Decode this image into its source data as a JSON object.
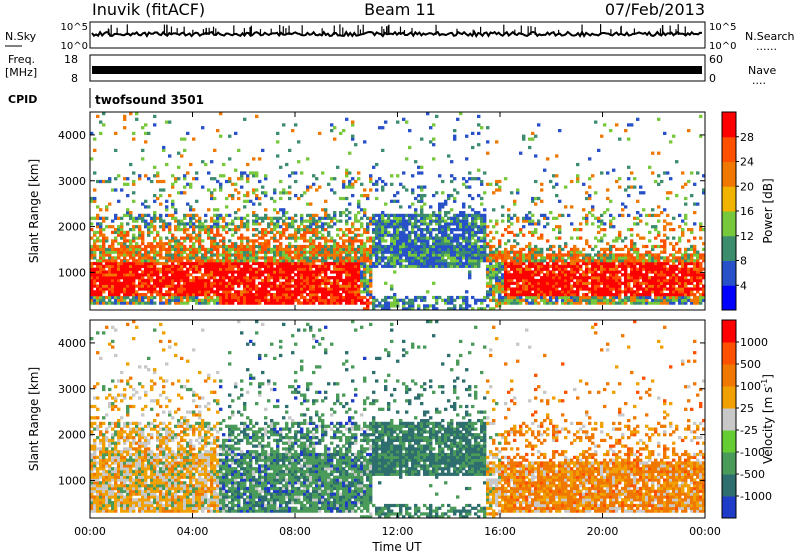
{
  "header": {
    "station": "Inuvik (fitACF)",
    "beam": "Beam 11",
    "date": "07/Feb/2013"
  },
  "left_labels": {
    "nsky": "N.Sky",
    "freq": "Freq.",
    "freq_unit": "[MHz]",
    "cpid": "CPID"
  },
  "right_labels": {
    "nsearch": "N.Search",
    "nave": "Nave",
    "dots": "......",
    "dots_short": "...."
  },
  "cpid_value": "twofsound 3501",
  "noise_panel": {
    "left_ticks": [
      "10^5",
      "10^0"
    ],
    "right_ticks": [
      "10^5",
      "10^0"
    ]
  },
  "freq_panel": {
    "left_ticks": [
      "18",
      "8"
    ],
    "right_ticks": [
      "60",
      "0"
    ]
  },
  "chart_data": [
    {
      "type": "heatmap",
      "name": "power",
      "ylabel": "Slant Range [km]",
      "yticks": [
        1000,
        2000,
        3000,
        4000
      ],
      "ylim": [
        180,
        4500
      ],
      "colorbar_label": "Power [dB]",
      "colorbar_ticks": [
        "28",
        "24",
        "20",
        "16",
        "12",
        "8",
        "4"
      ],
      "colors": [
        "#0000ff",
        "#2850c8",
        "#3c8c6e",
        "#78c83c",
        "#f0b400",
        "#f07800",
        "#ff5000",
        "#ff0000"
      ],
      "note": "grid of echo power vs time and slant range"
    },
    {
      "type": "heatmap",
      "name": "velocity",
      "ylabel": "Slant Range [km]",
      "yticks": [
        1000,
        2000,
        3000,
        4000
      ],
      "ylim": [
        180,
        4500
      ],
      "colorbar_label": "Velocity [m s",
      "colorbar_label_sup": "-1",
      "colorbar_label_end": "]",
      "colorbar_ticks": [
        "1000",
        "500",
        "100",
        "25",
        "-25",
        "-100",
        "-500",
        "-1000"
      ],
      "colors": [
        "#1e3cc8",
        "#2e6e6e",
        "#4a9a5a",
        "#66cc33",
        "#c8c8c8",
        "#f0a000",
        "#f07800",
        "#ff5000",
        "#ff0000"
      ]
    }
  ],
  "xaxis": {
    "ticks": [
      "00:00",
      "04:00",
      "08:00",
      "12:00",
      "16:00",
      "20:00",
      "00:00"
    ],
    "label": "Time UT"
  }
}
